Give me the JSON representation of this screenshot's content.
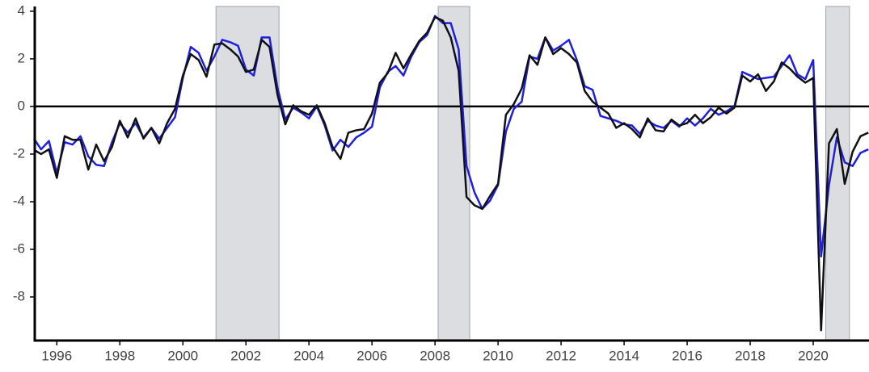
{
  "chart_data": {
    "type": "line",
    "x": [
      1995.25,
      1995.5,
      1995.75,
      1996,
      1996.25,
      1996.5,
      1996.75,
      1997,
      1997.25,
      1997.5,
      1997.75,
      1998,
      1998.25,
      1998.5,
      1998.75,
      1999,
      1999.25,
      1999.5,
      1999.75,
      2000,
      2000.25,
      2000.5,
      2000.75,
      2001,
      2001.25,
      2001.5,
      2001.75,
      2002,
      2002.25,
      2002.5,
      2002.75,
      2003,
      2003.25,
      2003.5,
      2003.75,
      2004,
      2004.25,
      2004.5,
      2004.75,
      2005,
      2005.25,
      2005.5,
      2005.75,
      2006,
      2006.25,
      2006.5,
      2006.75,
      2007,
      2007.25,
      2007.5,
      2007.75,
      2008,
      2008.25,
      2008.5,
      2008.75,
      2009,
      2009.25,
      2009.5,
      2009.75,
      2010,
      2010.25,
      2010.5,
      2010.75,
      2011,
      2011.25,
      2011.5,
      2011.75,
      2012,
      2012.25,
      2012.5,
      2012.75,
      2013,
      2013.25,
      2013.5,
      2013.75,
      2014,
      2014.25,
      2014.5,
      2014.75,
      2015,
      2015.25,
      2015.5,
      2015.75,
      2016,
      2016.25,
      2016.5,
      2016.75,
      2017,
      2017.25,
      2017.5,
      2017.75,
      2018,
      2018.25,
      2018.5,
      2018.75,
      2019,
      2019.25,
      2019.5,
      2019.75,
      2020,
      2020.25,
      2020.5,
      2020.75,
      2021,
      2021.25,
      2021.5,
      2021.75
    ],
    "series": [
      {
        "color": "#1f1fdf",
        "values": [
          -1.3,
          -1.8,
          -1.45,
          -2.8,
          -1.5,
          -1.6,
          -1.25,
          -2.1,
          -2.45,
          -2.5,
          -1.5,
          -0.7,
          -1.1,
          -0.7,
          -1.3,
          -0.9,
          -1.35,
          -0.9,
          -0.45,
          1.2,
          2.5,
          2.25,
          1.5,
          2.1,
          2.8,
          2.7,
          2.55,
          1.55,
          1.3,
          2.9,
          2.9,
          0.8,
          -0.55,
          -0.05,
          -0.25,
          -0.5,
          0.0,
          -0.8,
          -1.85,
          -1.4,
          -1.7,
          -1.3,
          -1.1,
          -0.85,
          0.8,
          1.45,
          1.7,
          1.3,
          2.1,
          2.7,
          3.0,
          3.8,
          3.5,
          3.5,
          2.4,
          -2.5,
          -3.6,
          -4.3,
          -3.95,
          -3.3,
          -1.05,
          -0.1,
          0.2,
          2.1,
          2.0,
          2.9,
          2.35,
          2.55,
          2.8,
          1.95,
          0.85,
          0.7,
          -0.4,
          -0.5,
          -0.6,
          -0.75,
          -0.8,
          -1.15,
          -0.6,
          -0.8,
          -0.9,
          -0.6,
          -0.85,
          -0.5,
          -0.8,
          -0.5,
          -0.1,
          -0.35,
          -0.2,
          0.0,
          1.45,
          1.3,
          1.15,
          1.2,
          1.25,
          1.7,
          2.15,
          1.35,
          1.15,
          1.95,
          -6.3,
          -3.3,
          -1.3,
          -2.35,
          -2.5,
          -1.95,
          -1.8
        ]
      },
      {
        "color": "#111111",
        "values": [
          -1.8,
          -2.0,
          -1.8,
          -3.0,
          -1.25,
          -1.4,
          -1.4,
          -2.65,
          -1.6,
          -2.3,
          -1.7,
          -0.6,
          -1.3,
          -0.5,
          -1.35,
          -0.9,
          -1.55,
          -0.7,
          -0.1,
          1.3,
          2.2,
          1.95,
          1.25,
          2.6,
          2.65,
          2.4,
          2.1,
          1.45,
          1.55,
          2.8,
          2.5,
          0.5,
          -0.75,
          0.05,
          -0.2,
          -0.35,
          0.05,
          -0.7,
          -1.7,
          -2.2,
          -1.1,
          -1.0,
          -0.95,
          -0.3,
          1.0,
          1.4,
          2.25,
          1.6,
          2.2,
          2.75,
          3.1,
          3.75,
          3.6,
          2.9,
          1.5,
          -3.8,
          -4.15,
          -4.3,
          -3.75,
          -3.25,
          -0.35,
          0.1,
          0.75,
          2.15,
          1.75,
          2.9,
          2.2,
          2.45,
          2.2,
          1.85,
          0.65,
          0.2,
          -0.05,
          -0.3,
          -0.9,
          -0.7,
          -0.95,
          -1.3,
          -0.5,
          -1.0,
          -1.05,
          -0.55,
          -0.8,
          -0.7,
          -0.35,
          -0.7,
          -0.45,
          -0.05,
          -0.3,
          -0.05,
          1.3,
          1.05,
          1.35,
          0.65,
          1.05,
          1.85,
          1.6,
          1.25,
          1.0,
          1.2,
          -9.4,
          -1.55,
          -0.95,
          -3.25,
          -1.9,
          -1.25,
          -1.1
        ]
      }
    ],
    "shaded_periods": [
      [
        2001.05,
        2003.05
      ],
      [
        2008.1,
        2009.1
      ],
      [
        2020.4,
        2021.15
      ]
    ],
    "shade_color": "#dcdde1",
    "reference_line": 0,
    "xlim": [
      1995.3,
      2021.77
    ],
    "xticks": [
      1996,
      1998,
      2000,
      2002,
      2004,
      2006,
      2008,
      2010,
      2012,
      2014,
      2016,
      2018,
      2020
    ],
    "ylim": [
      -9.83,
      4.2
    ],
    "yticks": [
      4,
      2,
      0,
      -2,
      -4,
      -6,
      -8
    ],
    "grid": false
  }
}
